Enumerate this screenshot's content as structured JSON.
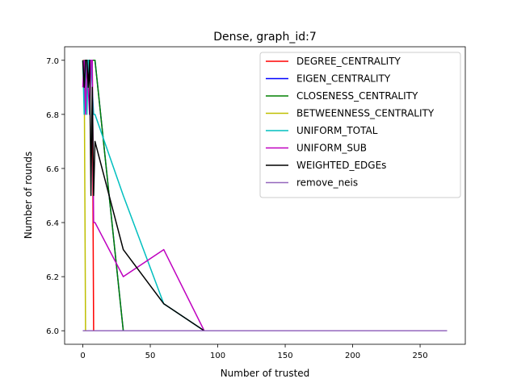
{
  "chart_data": {
    "type": "line",
    "title": "Dense, graph_id:7",
    "xlabel": "Number of trusted",
    "ylabel": "Number of rounds",
    "xlim": [
      -13.5,
      283.5
    ],
    "ylim": [
      5.95,
      7.05
    ],
    "xticks": [
      0,
      50,
      100,
      150,
      200,
      250
    ],
    "yticks": [
      6.0,
      6.2,
      6.4,
      6.6,
      6.8,
      7.0
    ],
    "xtick_labels": [
      "0",
      "50",
      "100",
      "150",
      "200",
      "250"
    ],
    "ytick_labels": [
      "6.0",
      "6.2",
      "6.4",
      "6.6",
      "6.8",
      "7.0"
    ],
    "legend_position": "upper right",
    "series": [
      {
        "name": "DEGREE_CENTRALITY",
        "color": "#ff0000",
        "x": [
          0,
          1,
          2,
          3,
          4,
          5,
          6,
          7,
          8,
          9,
          30,
          60,
          90,
          270
        ],
        "y": [
          7.0,
          7.0,
          7.0,
          7.0,
          7.0,
          7.0,
          7.0,
          7.0,
          6.0,
          6.0,
          6.0,
          6.0,
          6.0,
          6.0
        ]
      },
      {
        "name": "EIGEN_CENTRALITY",
        "color": "#0000ff",
        "x": [
          0,
          1,
          2,
          3,
          4,
          5,
          6,
          7,
          8,
          9,
          30,
          60,
          90,
          270
        ],
        "y": [
          7.0,
          7.0,
          7.0,
          7.0,
          7.0,
          7.0,
          7.0,
          7.0,
          7.0,
          7.0,
          6.0,
          6.0,
          6.0,
          6.0
        ]
      },
      {
        "name": "CLOSENESS_CENTRALITY",
        "color": "#008000",
        "x": [
          0,
          1,
          2,
          3,
          4,
          5,
          6,
          7,
          8,
          9,
          30,
          60,
          90,
          270
        ],
        "y": [
          7.0,
          7.0,
          7.0,
          7.0,
          7.0,
          7.0,
          7.0,
          7.0,
          7.0,
          7.0,
          6.0,
          6.0,
          6.0,
          6.0
        ]
      },
      {
        "name": "BETWEENNESS_CENTRALITY",
        "color": "#bfbf00",
        "x": [
          0,
          1,
          2,
          3,
          4,
          5,
          6,
          7,
          8,
          9,
          30,
          60,
          90,
          270
        ],
        "y": [
          7.0,
          7.0,
          6.0,
          6.0,
          6.0,
          6.0,
          6.0,
          6.0,
          6.0,
          6.0,
          6.0,
          6.0,
          6.0,
          6.0
        ]
      },
      {
        "name": "UNIFORM_TOTAL",
        "color": "#00bfbf",
        "x": [
          0,
          1,
          2,
          3,
          4,
          5,
          6,
          7,
          8,
          9,
          30,
          60,
          90,
          270
        ],
        "y": [
          7.0,
          6.8,
          7.0,
          6.8,
          7.0,
          7.0,
          7.0,
          6.9,
          6.8,
          6.8,
          6.5,
          6.1,
          6.0,
          6.0
        ]
      },
      {
        "name": "UNIFORM_SUB",
        "color": "#bf00bf",
        "x": [
          0,
          1,
          2,
          3,
          4,
          5,
          6,
          7,
          8,
          9,
          30,
          60,
          90,
          270
        ],
        "y": [
          6.9,
          7.0,
          6.8,
          7.0,
          6.9,
          6.8,
          7.0,
          7.0,
          6.4,
          6.4,
          6.2,
          6.3,
          6.0,
          6.0
        ]
      },
      {
        "name": "WEIGHTED_EDGEs",
        "color": "#000000",
        "x": [
          0,
          1,
          2,
          3,
          4,
          5,
          6,
          7,
          8,
          9,
          30,
          60,
          90,
          270
        ],
        "y": [
          7.0,
          6.9,
          7.0,
          7.0,
          6.9,
          7.0,
          6.5,
          6.9,
          6.5,
          6.7,
          6.3,
          6.1,
          6.0,
          6.0
        ]
      },
      {
        "name": "remove_neis",
        "color": "#9467bd",
        "x": [
          0,
          1,
          2,
          3,
          4,
          5,
          6,
          7,
          8,
          9,
          30,
          60,
          90,
          270
        ],
        "y": [
          6.0,
          6.0,
          6.0,
          6.0,
          6.0,
          6.0,
          6.0,
          6.0,
          6.0,
          6.0,
          6.0,
          6.0,
          6.0,
          6.0
        ]
      }
    ]
  }
}
